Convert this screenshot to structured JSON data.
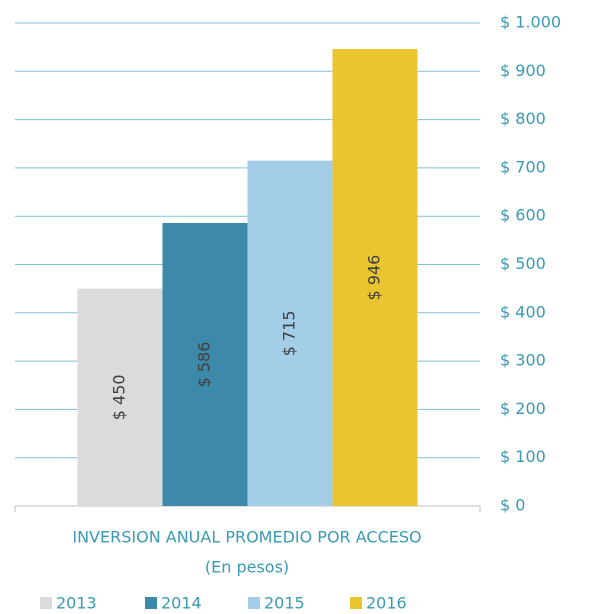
{
  "chart_data": {
    "type": "bar",
    "title": "INVERSION ANUAL PROMEDIO POR ACCESO",
    "subtitle": "(En pesos)",
    "categories": [
      null
    ],
    "series": [
      {
        "name": "2013",
        "color": "#dcdbdb",
        "values": [
          450
        ],
        "value_labels": [
          "$ 450"
        ]
      },
      {
        "name": "2014",
        "color": "#3d89aa",
        "values": [
          586
        ],
        "value_labels": [
          "$ 586"
        ]
      },
      {
        "name": "2015",
        "color": "#a4cde8",
        "values": [
          715
        ],
        "value_labels": [
          "$ 715"
        ]
      },
      {
        "name": "2016",
        "color": "#ebc52f",
        "values": [
          946
        ],
        "value_labels": [
          "$ 946"
        ]
      }
    ],
    "ylim": [
      0,
      1000
    ],
    "yticks": [
      {
        "value": 0,
        "label": "$ 0"
      },
      {
        "value": 100,
        "label": "$ 100"
      },
      {
        "value": 200,
        "label": "$ 200"
      },
      {
        "value": 300,
        "label": "$ 300"
      },
      {
        "value": 400,
        "label": "$ 400"
      },
      {
        "value": 500,
        "label": "$ 500"
      },
      {
        "value": 600,
        "label": "$ 600"
      },
      {
        "value": 700,
        "label": "$ 700"
      },
      {
        "value": 800,
        "label": "$ 800"
      },
      {
        "value": 900,
        "label": "$ 900"
      },
      {
        "value": 1000,
        "label": "$ 1.000"
      }
    ],
    "grid": true,
    "legend": "bottom"
  }
}
